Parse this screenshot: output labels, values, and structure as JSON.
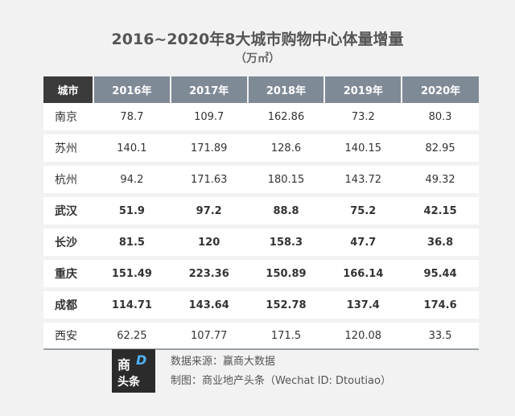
{
  "title": "2016~2020年8大城市购物中心体量增量",
  "subtitle": "（万㎡）",
  "table": {
    "header_city": "城市",
    "years": [
      "2016年",
      "2017年",
      "2018年",
      "2019年",
      "2020年"
    ],
    "rows": [
      {
        "city": "南京",
        "bold": false,
        "values": [
          "78.7",
          "109.7",
          "162.86",
          "73.2",
          "80.3"
        ]
      },
      {
        "city": "苏州",
        "bold": false,
        "values": [
          "140.1",
          "171.89",
          "128.6",
          "140.15",
          "82.95"
        ]
      },
      {
        "city": "杭州",
        "bold": false,
        "values": [
          "94.2",
          "171.63",
          "180.15",
          "143.72",
          "49.32"
        ]
      },
      {
        "city": "武汉",
        "bold": true,
        "values": [
          "51.9",
          "97.2",
          "88.8",
          "75.2",
          "42.15"
        ]
      },
      {
        "city": "长沙",
        "bold": true,
        "values": [
          "81.5",
          "120",
          "158.3",
          "47.7",
          "36.8"
        ]
      },
      {
        "city": "重庆",
        "bold": true,
        "values": [
          "151.49",
          "223.36",
          "150.89",
          "166.14",
          "95.44"
        ]
      },
      {
        "city": "成都",
        "bold": true,
        "values": [
          "114.71",
          "143.64",
          "152.78",
          "137.4",
          "174.6"
        ]
      },
      {
        "city": "西安",
        "bold": false,
        "values": [
          "62.25",
          "107.77",
          "171.5",
          "120.08",
          "33.5"
        ]
      }
    ]
  },
  "footer": {
    "logo_line1": "商",
    "logo_mark": "D",
    "logo_line2": "头条",
    "source": "数据来源：赢商大数据",
    "credit": "制图：商业地产头条（Wechat ID: Dtoutiao）"
  },
  "chart_data": {
    "type": "table",
    "title": "2016~2020年8大城市购物中心体量增量",
    "subtitle": "（万㎡）",
    "columns": [
      "城市",
      "2016年",
      "2017年",
      "2018年",
      "2019年",
      "2020年"
    ],
    "rows": [
      [
        "南京",
        78.7,
        109.7,
        162.86,
        73.2,
        80.3
      ],
      [
        "苏州",
        140.1,
        171.89,
        128.6,
        140.15,
        82.95
      ],
      [
        "杭州",
        94.2,
        171.63,
        180.15,
        143.72,
        49.32
      ],
      [
        "武汉",
        51.9,
        97.2,
        88.8,
        75.2,
        42.15
      ],
      [
        "长沙",
        81.5,
        120,
        158.3,
        47.7,
        36.8
      ],
      [
        "重庆",
        151.49,
        223.36,
        150.89,
        166.14,
        95.44
      ],
      [
        "成都",
        114.71,
        143.64,
        152.78,
        137.4,
        174.6
      ],
      [
        "西安",
        62.25,
        107.77,
        171.5,
        120.08,
        33.5
      ]
    ]
  }
}
